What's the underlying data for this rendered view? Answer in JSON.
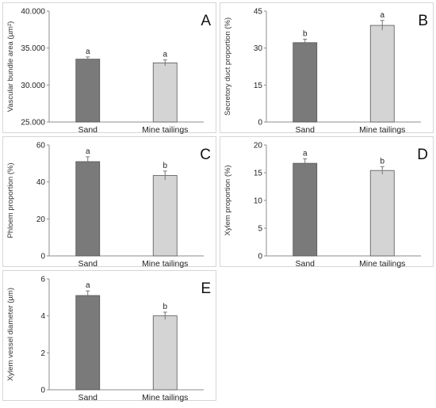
{
  "chart_data": [
    {
      "panel": "A",
      "type": "bar",
      "categories": [
        "Sand",
        "Mine tailings"
      ],
      "values": [
        33.5,
        33.0
      ],
      "errors": [
        0.3,
        0.4
      ],
      "significance": [
        "a",
        "a"
      ],
      "ylabel": "Vascular bundle area (µm²)",
      "ylim": [
        25.0,
        40.0
      ],
      "yticks": [
        "25.000",
        "30.000",
        "35.000",
        "40.000"
      ],
      "colors": [
        "#7a7a7a",
        "#d4d4d4"
      ]
    },
    {
      "panel": "B",
      "type": "bar",
      "categories": [
        "Sand",
        "Mine tailings"
      ],
      "values": [
        32.2,
        39.2
      ],
      "errors": [
        1.4,
        2.0
      ],
      "significance": [
        "b",
        "a"
      ],
      "ylabel": "Secretory duct proportion (%)",
      "ylim": [
        0,
        45
      ],
      "yticks": [
        "0",
        "15",
        "30",
        "45"
      ],
      "colors": [
        "#7a7a7a",
        "#d4d4d4"
      ]
    },
    {
      "panel": "C",
      "type": "bar",
      "categories": [
        "Sand",
        "Mine tailings"
      ],
      "values": [
        51.0,
        43.5
      ],
      "errors": [
        2.6,
        2.4
      ],
      "significance": [
        "a",
        "b"
      ],
      "ylabel": "Phloem proportion (%)",
      "ylim": [
        0,
        60
      ],
      "yticks": [
        "0",
        "20",
        "40",
        "60"
      ],
      "colors": [
        "#7a7a7a",
        "#d4d4d4"
      ]
    },
    {
      "panel": "D",
      "type": "bar",
      "categories": [
        "Sand",
        "Mine tailings"
      ],
      "values": [
        16.7,
        15.4
      ],
      "errors": [
        0.8,
        0.7
      ],
      "significance": [
        "a",
        "b"
      ],
      "ylabel": "Xylem proportion (%)",
      "ylim": [
        0,
        20
      ],
      "yticks": [
        "0",
        "5",
        "10",
        "15",
        "20"
      ],
      "colors": [
        "#7a7a7a",
        "#d4d4d4"
      ]
    },
    {
      "panel": "E",
      "type": "bar",
      "categories": [
        "Sand",
        "Mine tailings"
      ],
      "values": [
        5.1,
        4.0
      ],
      "errors": [
        0.25,
        0.2
      ],
      "significance": [
        "a",
        "b"
      ],
      "ylabel": "Xylem vessel diameter (µm)",
      "ylim": [
        0,
        6
      ],
      "yticks": [
        "0",
        "2",
        "4",
        "6"
      ],
      "colors": [
        "#7a7a7a",
        "#d4d4d4"
      ]
    }
  ]
}
